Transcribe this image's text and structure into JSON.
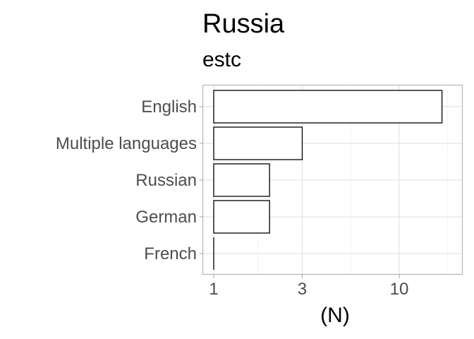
{
  "chart_data": {
    "type": "bar",
    "orientation": "horizontal",
    "title": "Russia",
    "subtitle": "estc",
    "xlabel": "(N)",
    "ylabel": "",
    "x_scale": "log10",
    "x_ticks": [
      1,
      3,
      10
    ],
    "categories": [
      "English",
      "Multiple languages",
      "Russian",
      "German",
      "French"
    ],
    "values": [
      17,
      3,
      2,
      2,
      1
    ],
    "bar_fill": "#ffffff",
    "bar_outline": "#000000",
    "grid": true,
    "legend": "none"
  }
}
